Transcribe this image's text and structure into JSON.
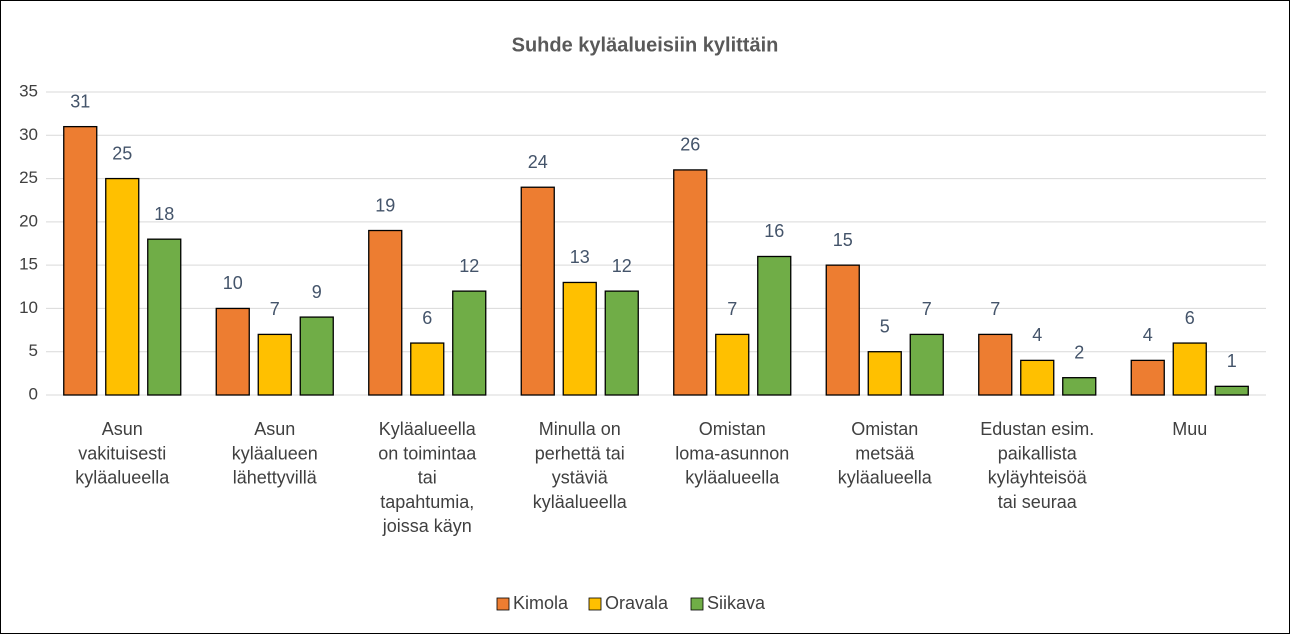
{
  "chart_data": {
    "type": "bar",
    "title": "Suhde kyläalueisiin kylittäin",
    "categories": [
      "Asun\nvakituisesti\nkyläalueella",
      "Asun\nkyläalueen\nlähettyvillä",
      "Kyläalueella\non toimintaa\ntai\ntapahtumia,\njoissa käyn",
      "Minulla on\nperhettä tai\nystäviä\nkyläalueella",
      "Omistan\nloma-asunnon\nkyläalueella",
      "Omistan\nmetsää\nkyläalueella",
      "Edustan esim.\npaikallista\nkyläyhteisöä\ntai seuraa",
      "Muu"
    ],
    "series": [
      {
        "name": "Kimola",
        "color": "#ed7d31",
        "values": [
          31,
          10,
          19,
          24,
          26,
          15,
          7,
          4
        ]
      },
      {
        "name": "Oravala",
        "color": "#ffc000",
        "values": [
          25,
          7,
          6,
          13,
          7,
          5,
          4,
          6
        ]
      },
      {
        "name": "Siikava",
        "color": "#70ad47",
        "values": [
          18,
          9,
          12,
          12,
          16,
          7,
          2,
          1
        ]
      }
    ],
    "ylim": [
      0,
      35
    ],
    "yticks": [
      0,
      5,
      10,
      15,
      20,
      25,
      30,
      35
    ],
    "grid": true,
    "legend": "bottom"
  }
}
